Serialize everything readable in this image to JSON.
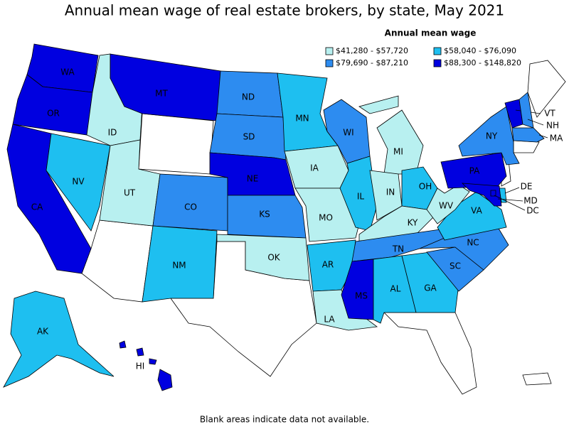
{
  "title": "Annual mean wage of real estate brokers, by state, May 2021",
  "legend": {
    "title": "Annual mean wage",
    "items": [
      {
        "label": "$41,280 - $57,720",
        "color": "#b8f0f0"
      },
      {
        "label": "$58,040 - $76,090",
        "color": "#1ebff0"
      },
      {
        "label": "$79,690 - $87,210",
        "color": "#2d8cf0"
      },
      {
        "label": "$88,300 - $148,820",
        "color": "#0000e0"
      }
    ]
  },
  "states": [
    {
      "label": "WA",
      "color": "#0000e0"
    },
    {
      "label": "OR",
      "color": "#0000e0"
    },
    {
      "label": "CA",
      "color": "#0000e0"
    },
    {
      "label": "NV",
      "color": "#1ebff0"
    },
    {
      "label": "ID",
      "color": "#b8f0f0"
    },
    {
      "label": "MT",
      "color": "#0000e0"
    },
    {
      "label": "UT",
      "color": "#b8f0f0"
    },
    {
      "label": "CO",
      "color": "#2d8cf0"
    },
    {
      "label": "NM",
      "color": "#1ebff0"
    },
    {
      "label": "ND",
      "color": "#2d8cf0"
    },
    {
      "label": "SD",
      "color": "#2d8cf0"
    },
    {
      "label": "NE",
      "color": "#0000e0"
    },
    {
      "label": "KS",
      "color": "#2d8cf0"
    },
    {
      "label": "OK",
      "color": "#b8f0f0"
    },
    {
      "label": "MN",
      "color": "#1ebff0"
    },
    {
      "label": "IA",
      "color": "#b8f0f0"
    },
    {
      "label": "MO",
      "color": "#b8f0f0"
    },
    {
      "label": "AR",
      "color": "#1ebff0"
    },
    {
      "label": "LA",
      "color": "#b8f0f0"
    },
    {
      "label": "WI",
      "color": "#2d8cf0"
    },
    {
      "label": "IL",
      "color": "#1ebff0"
    },
    {
      "label": "MI",
      "color": "#b8f0f0"
    },
    {
      "label": "IN",
      "color": "#b8f0f0"
    },
    {
      "label": "OH",
      "color": "#1ebff0"
    },
    {
      "label": "KY",
      "color": "#b8f0f0"
    },
    {
      "label": "TN",
      "color": "#2d8cf0"
    },
    {
      "label": "MS",
      "color": "#0000e0"
    },
    {
      "label": "AL",
      "color": "#1ebff0"
    },
    {
      "label": "GA",
      "color": "#1ebff0"
    },
    {
      "label": "SC",
      "color": "#2d8cf0"
    },
    {
      "label": "NC",
      "color": "#2d8cf0"
    },
    {
      "label": "VA",
      "color": "#1ebff0"
    },
    {
      "label": "WV",
      "color": "#b8f0f0"
    },
    {
      "label": "PA",
      "color": "#0000e0"
    },
    {
      "label": "NY",
      "color": "#2d8cf0"
    },
    {
      "label": "VT",
      "color": "#0000e0"
    },
    {
      "label": "NH",
      "color": "#2d8cf0"
    },
    {
      "label": "MA",
      "color": "#2d8cf0"
    },
    {
      "label": "DE",
      "color": "#1ebff0"
    },
    {
      "label": "MD",
      "color": "#0000e0"
    },
    {
      "label": "DC",
      "color": "#0000e0"
    },
    {
      "label": "AK",
      "color": "#1ebff0"
    },
    {
      "label": "HI",
      "color": "#0000e0"
    }
  ],
  "note": "Blank areas indicate data not available."
}
